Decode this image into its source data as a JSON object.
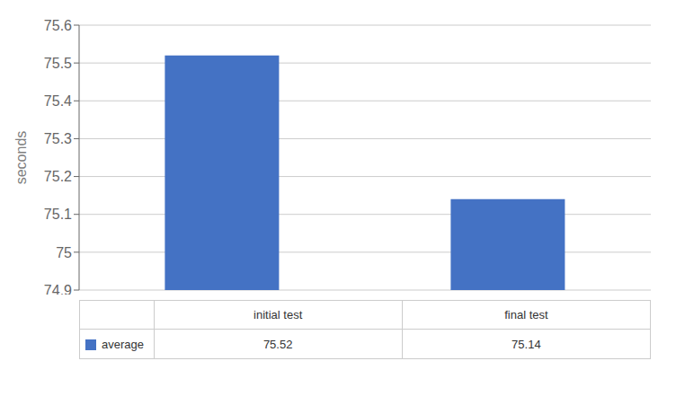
{
  "chart_data": {
    "type": "bar",
    "categories": [
      "initial test",
      "final test"
    ],
    "series": [
      {
        "name": "average",
        "color": "#4472C4",
        "values": [
          75.52,
          75.14
        ]
      }
    ],
    "ylabel": "seconds",
    "ylim": [
      74.9,
      75.6
    ],
    "yticks": [
      74.9,
      75.0,
      75.1,
      75.2,
      75.3,
      75.4,
      75.5,
      75.6
    ],
    "grid": true,
    "data_labels": true
  }
}
